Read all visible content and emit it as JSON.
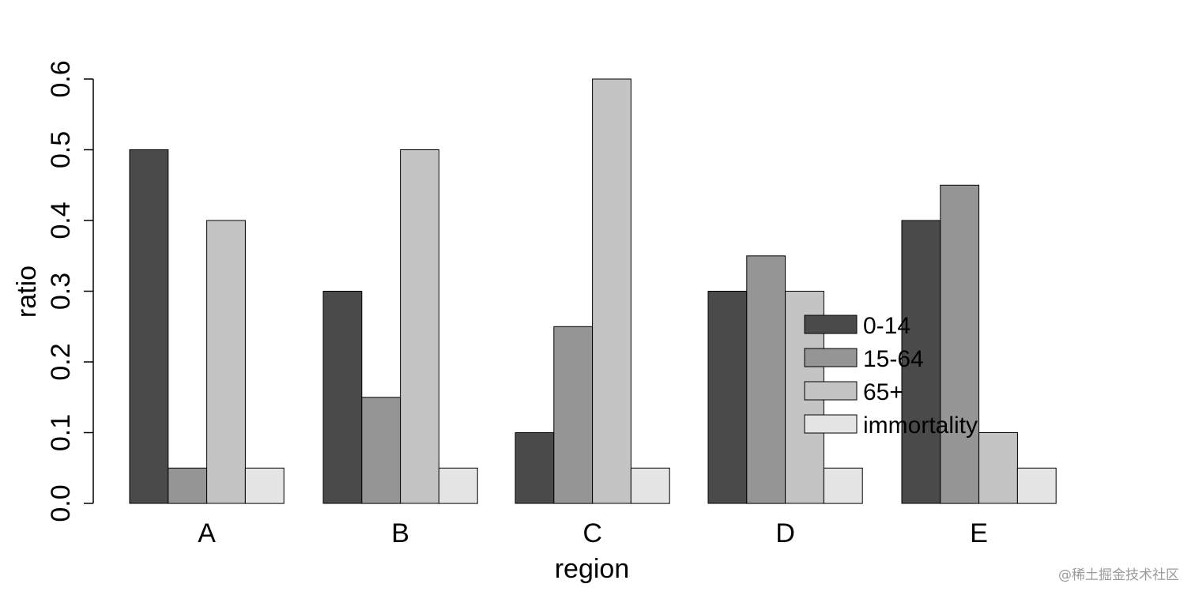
{
  "chart_data": {
    "type": "bar",
    "xlabel": "region",
    "ylabel": "ratio",
    "ylim": [
      0,
      0.6
    ],
    "yticks": [
      "0.0",
      "0.1",
      "0.2",
      "0.3",
      "0.4",
      "0.5",
      "0.6"
    ],
    "categories": [
      "A",
      "B",
      "C",
      "D",
      "E"
    ],
    "series": [
      {
        "name": "0-14",
        "color": "#4a4a4a",
        "values": [
          0.5,
          0.3,
          0.1,
          0.3,
          0.4
        ]
      },
      {
        "name": "15-64",
        "color": "#959595",
        "values": [
          0.05,
          0.15,
          0.25,
          0.35,
          0.45
        ]
      },
      {
        "name": "65+",
        "color": "#c4c4c4",
        "values": [
          0.4,
          0.5,
          0.6,
          0.3,
          0.1
        ]
      },
      {
        "name": "immortality",
        "color": "#e5e5e5",
        "values": [
          0.05,
          0.05,
          0.05,
          0.05,
          0.05
        ]
      }
    ],
    "legend_position": "right",
    "grid": false
  },
  "watermark": "@稀土掘金技术社区"
}
